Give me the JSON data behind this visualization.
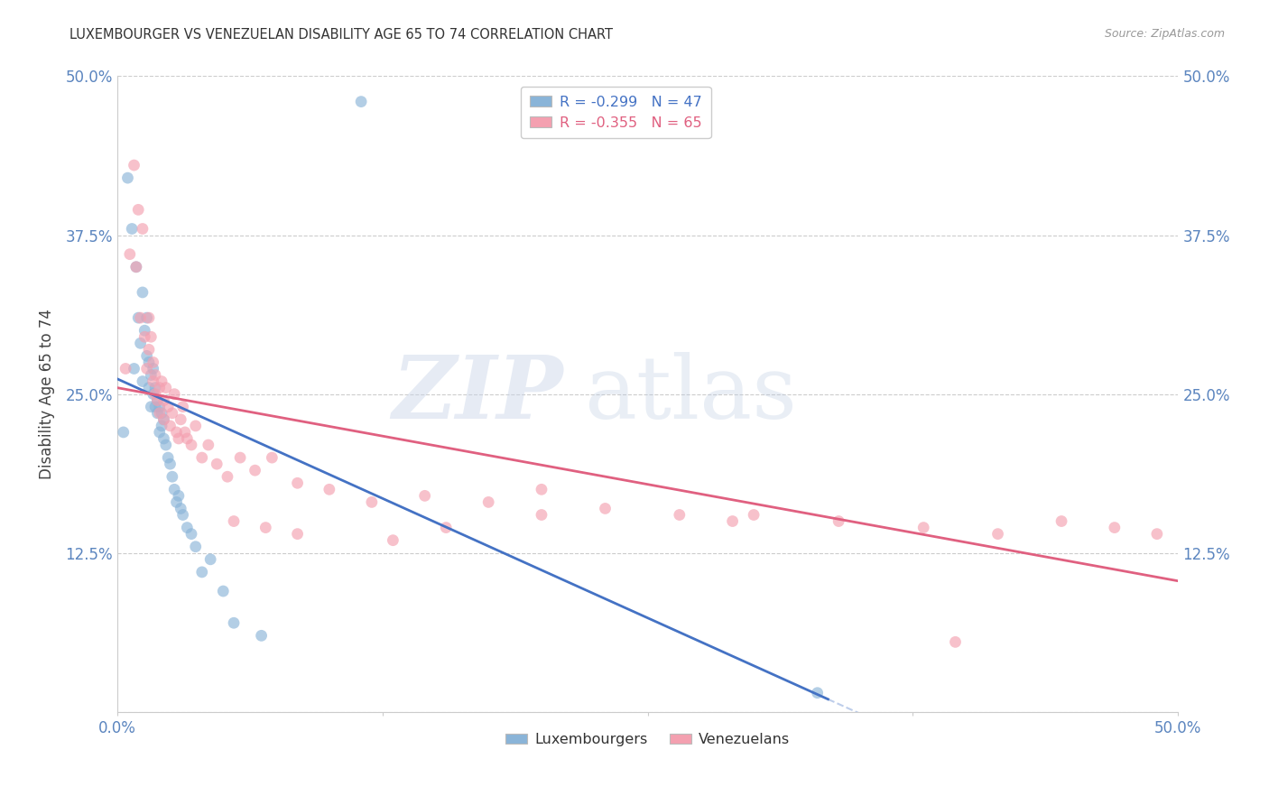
{
  "title": "LUXEMBOURGER VS VENEZUELAN DISABILITY AGE 65 TO 74 CORRELATION CHART",
  "source": "Source: ZipAtlas.com",
  "ylabel": "Disability Age 65 to 74",
  "xlim": [
    0.0,
    0.5
  ],
  "ylim": [
    0.0,
    0.5
  ],
  "background_color": "#ffffff",
  "blue_color": "#8ab4d8",
  "pink_color": "#f4a0b0",
  "blue_line_color": "#4472c4",
  "pink_line_color": "#e06080",
  "legend_R_blue": "R = -0.299",
  "legend_N_blue": "N = 47",
  "legend_R_pink": "R = -0.355",
  "legend_N_pink": "N = 65",
  "legend_label_blue": "Luxembourgers",
  "legend_label_pink": "Venezuelans",
  "lux_x": [
    0.003,
    0.005,
    0.007,
    0.008,
    0.009,
    0.01,
    0.011,
    0.012,
    0.012,
    0.013,
    0.014,
    0.014,
    0.015,
    0.015,
    0.016,
    0.016,
    0.017,
    0.017,
    0.018,
    0.018,
    0.019,
    0.019,
    0.02,
    0.02,
    0.021,
    0.021,
    0.022,
    0.022,
    0.023,
    0.024,
    0.025,
    0.026,
    0.027,
    0.028,
    0.029,
    0.03,
    0.031,
    0.033,
    0.035,
    0.037,
    0.04,
    0.044,
    0.05,
    0.055,
    0.068,
    0.115,
    0.33
  ],
  "lux_y": [
    0.22,
    0.42,
    0.38,
    0.27,
    0.35,
    0.31,
    0.29,
    0.26,
    0.33,
    0.3,
    0.28,
    0.31,
    0.255,
    0.275,
    0.24,
    0.265,
    0.25,
    0.27,
    0.24,
    0.255,
    0.235,
    0.245,
    0.22,
    0.24,
    0.225,
    0.235,
    0.215,
    0.23,
    0.21,
    0.2,
    0.195,
    0.185,
    0.175,
    0.165,
    0.17,
    0.16,
    0.155,
    0.145,
    0.14,
    0.13,
    0.11,
    0.12,
    0.095,
    0.07,
    0.06,
    0.48,
    0.015
  ],
  "ven_x": [
    0.004,
    0.006,
    0.008,
    0.009,
    0.01,
    0.011,
    0.012,
    0.013,
    0.014,
    0.015,
    0.015,
    0.016,
    0.017,
    0.017,
    0.018,
    0.018,
    0.019,
    0.02,
    0.02,
    0.021,
    0.022,
    0.022,
    0.023,
    0.024,
    0.025,
    0.026,
    0.027,
    0.028,
    0.029,
    0.03,
    0.031,
    0.032,
    0.033,
    0.035,
    0.037,
    0.04,
    0.043,
    0.047,
    0.052,
    0.058,
    0.065,
    0.073,
    0.085,
    0.1,
    0.12,
    0.145,
    0.175,
    0.2,
    0.23,
    0.265,
    0.3,
    0.34,
    0.38,
    0.415,
    0.445,
    0.47,
    0.49,
    0.395,
    0.29,
    0.2,
    0.155,
    0.085,
    0.055,
    0.13,
    0.07
  ],
  "ven_y": [
    0.27,
    0.36,
    0.43,
    0.35,
    0.395,
    0.31,
    0.38,
    0.295,
    0.27,
    0.31,
    0.285,
    0.295,
    0.26,
    0.275,
    0.25,
    0.265,
    0.245,
    0.255,
    0.235,
    0.26,
    0.245,
    0.23,
    0.255,
    0.24,
    0.225,
    0.235,
    0.25,
    0.22,
    0.215,
    0.23,
    0.24,
    0.22,
    0.215,
    0.21,
    0.225,
    0.2,
    0.21,
    0.195,
    0.185,
    0.2,
    0.19,
    0.2,
    0.18,
    0.175,
    0.165,
    0.17,
    0.165,
    0.175,
    0.16,
    0.155,
    0.155,
    0.15,
    0.145,
    0.14,
    0.15,
    0.145,
    0.14,
    0.055,
    0.15,
    0.155,
    0.145,
    0.14,
    0.15,
    0.135,
    0.145
  ],
  "lux_line_x0": 0.0,
  "lux_line_y0": 0.262,
  "lux_line_x1": 0.335,
  "lux_line_y1": 0.01,
  "ven_line_x0": 0.0,
  "ven_line_y0": 0.255,
  "ven_line_x1": 0.5,
  "ven_line_y1": 0.103
}
